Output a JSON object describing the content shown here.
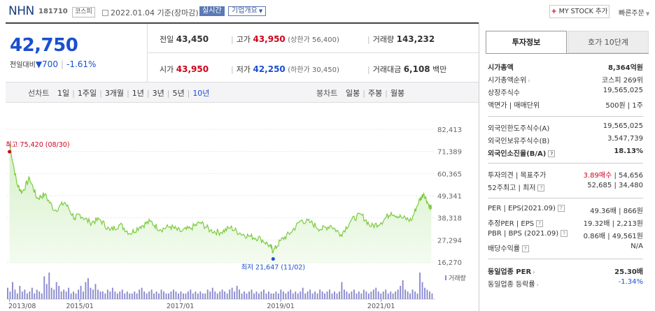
{
  "header": {
    "company": "NHN",
    "code": "181710",
    "market_tag": "코스피",
    "date_text": "2022.01.04 기준(장마감)",
    "realtime_label": "실시간",
    "corp_overview_label": "기업개요",
    "mystock_plus": "+",
    "mystock_label": "MY STOCK 추가",
    "quick_order_label": "빠른주문"
  },
  "quote": {
    "price": "42,750",
    "change_label": "전일대비",
    "change_arrow": "▼",
    "change_value": "700",
    "change_pct": "-1.61%",
    "prev_close_label": "전일",
    "prev_close": "43,450",
    "high_label": "고가",
    "high": "43,950",
    "upper_limit_text": "(상한가 56,400)",
    "volume_label": "거래량",
    "volume": "143,232",
    "open_label": "시가",
    "open": "43,950",
    "low_label": "저가",
    "low": "42,250",
    "lower_limit_text": "(하한가 30,450)",
    "trade_value_label": "거래대금",
    "trade_value": "6,108",
    "trade_value_unit": "백만"
  },
  "period_bar": {
    "line_chart_label": "선차트",
    "line_items": [
      "1일",
      "1주일",
      "3개월",
      "1년",
      "3년",
      "5년",
      "10년"
    ],
    "active_item": "10년",
    "candle_chart_label": "봉차트",
    "candle_items": [
      "일봉",
      "주봉",
      "월봉"
    ]
  },
  "chart_data": {
    "type": "area",
    "title": "",
    "y_ticks": [
      "82,413",
      "71,389",
      "60,365",
      "49,341",
      "38,318",
      "27,294",
      "16,270"
    ],
    "ylim": [
      16270,
      82413
    ],
    "x_ticks": [
      "2013/08",
      "2015/01",
      "2017/01",
      "2019/01",
      "2021/01"
    ],
    "max_annotation": "최고 75,420 (08/30)",
    "min_annotation": "최저 21,647 (11/02)",
    "volume_label": "거래량",
    "series": [
      {
        "x": [
          2013.6,
          2013.75,
          2013.85,
          2014.0,
          2014.15,
          2014.3,
          2014.5,
          2014.7,
          2014.9,
          2015.0,
          2015.2,
          2015.4,
          2015.6,
          2015.8,
          2016.0,
          2016.2,
          2016.4,
          2016.6,
          2016.8,
          2017.0,
          2017.2,
          2017.4,
          2017.6,
          2017.8,
          2018.0,
          2018.2,
          2018.4,
          2018.6,
          2018.8,
          2018.85,
          2019.0,
          2019.2,
          2019.4,
          2019.6,
          2019.8,
          2020.0,
          2020.2,
          2020.4,
          2020.6,
          2020.8,
          2021.0,
          2021.2,
          2021.4,
          2021.6,
          2021.75,
          2021.85,
          2021.95,
          2022.0
        ],
        "values": [
          75420,
          55000,
          51000,
          58000,
          48000,
          50000,
          42000,
          46000,
          38000,
          40000,
          36000,
          37500,
          32000,
          35000,
          30500,
          34000,
          36500,
          32500,
          34000,
          31500,
          33000,
          36000,
          32000,
          31000,
          33500,
          30500,
          29000,
          28000,
          24000,
          21647,
          27000,
          31000,
          37000,
          36000,
          32500,
          34500,
          30000,
          37000,
          40000,
          34000,
          36000,
          41000,
          38500,
          37000,
          46500,
          50500,
          44500,
          42750
        ]
      }
    ],
    "volume_bars": [
      6,
      4,
      9,
      5,
      3,
      7,
      4,
      5,
      3,
      4,
      6,
      3,
      5,
      4,
      3,
      12,
      8,
      14,
      6,
      5,
      9,
      7,
      4,
      5,
      4,
      6,
      3,
      4,
      3,
      5,
      7,
      4,
      9,
      11,
      6,
      5,
      8,
      5,
      4,
      4,
      3,
      5,
      4,
      6,
      4,
      3,
      4,
      5,
      3,
      4,
      3,
      3,
      4,
      3,
      5,
      6,
      4,
      3,
      4,
      5,
      3,
      4,
      3,
      5,
      4,
      3,
      3,
      4,
      5,
      4,
      3,
      4,
      3,
      3,
      4,
      5,
      3,
      4,
      3,
      4,
      3,
      3,
      5,
      4,
      6,
      4,
      3,
      4,
      5,
      4,
      3,
      5,
      6,
      4,
      7,
      5,
      3,
      4,
      3,
      4,
      5,
      3,
      4,
      3,
      4,
      5,
      3,
      4,
      3,
      3,
      4,
      3,
      5,
      4,
      3,
      4,
      5,
      3,
      4,
      3,
      4,
      6,
      3,
      4,
      5,
      3,
      4,
      3,
      5,
      4,
      3,
      4,
      5,
      3,
      4,
      3,
      4,
      9,
      5,
      4,
      3,
      4,
      5,
      3,
      4,
      3,
      5,
      4,
      3,
      4,
      5,
      6,
      4,
      3,
      4,
      5,
      3,
      4,
      3,
      4,
      5,
      7,
      10,
      5,
      4,
      3,
      5,
      4,
      3,
      14,
      9,
      6,
      5,
      4,
      3
    ]
  },
  "panel": {
    "tab_invest": "투자정보",
    "tab_orderbook": "호가 10단계",
    "rows1": [
      {
        "k": "시가총액",
        "v": "8,364억원",
        "bold": true
      },
      {
        "k": "시가총액순위",
        "v": "코스피 269위",
        "arrow": true
      },
      {
        "k": "상장주식수",
        "v": "19,565,025"
      },
      {
        "k": "액면가 | 매매단위",
        "v": "500원 | 1주"
      }
    ],
    "rows2": [
      {
        "k": "외국인한도주식수(A)",
        "v": "19,565,025"
      },
      {
        "k": "외국인보유주식수(B)",
        "v": "3,547,739"
      },
      {
        "k": "외국인소진율(B/A)",
        "v": "18.13%",
        "bold": true,
        "hint": true
      }
    ],
    "target_label": "투자의견 | 목표주가",
    "target_opinion": "3.89매수",
    "target_price": "| 54,656",
    "week52_label": "52주최고 | 최저",
    "week52_value": "52,685 | 34,480",
    "rows4": [
      {
        "k": "PER | EPS(2021.09)",
        "v": "49.36배 | 866원",
        "hint": true
      },
      {
        "k": "추정PER | EPS",
        "v": "19.32배 | 2,213원",
        "hint": true
      },
      {
        "k": "PBR | BPS (2021.09)",
        "v": "0.86배 | 49,561원",
        "hint": true
      },
      {
        "k": "배당수익률",
        "v": "N/A",
        "hint": true
      }
    ],
    "industry_per_label": "동일업종 PER",
    "industry_per_value": "25.30배",
    "industry_rate_label": "동일업종 등락률",
    "industry_rate_value": "-1.34%"
  }
}
